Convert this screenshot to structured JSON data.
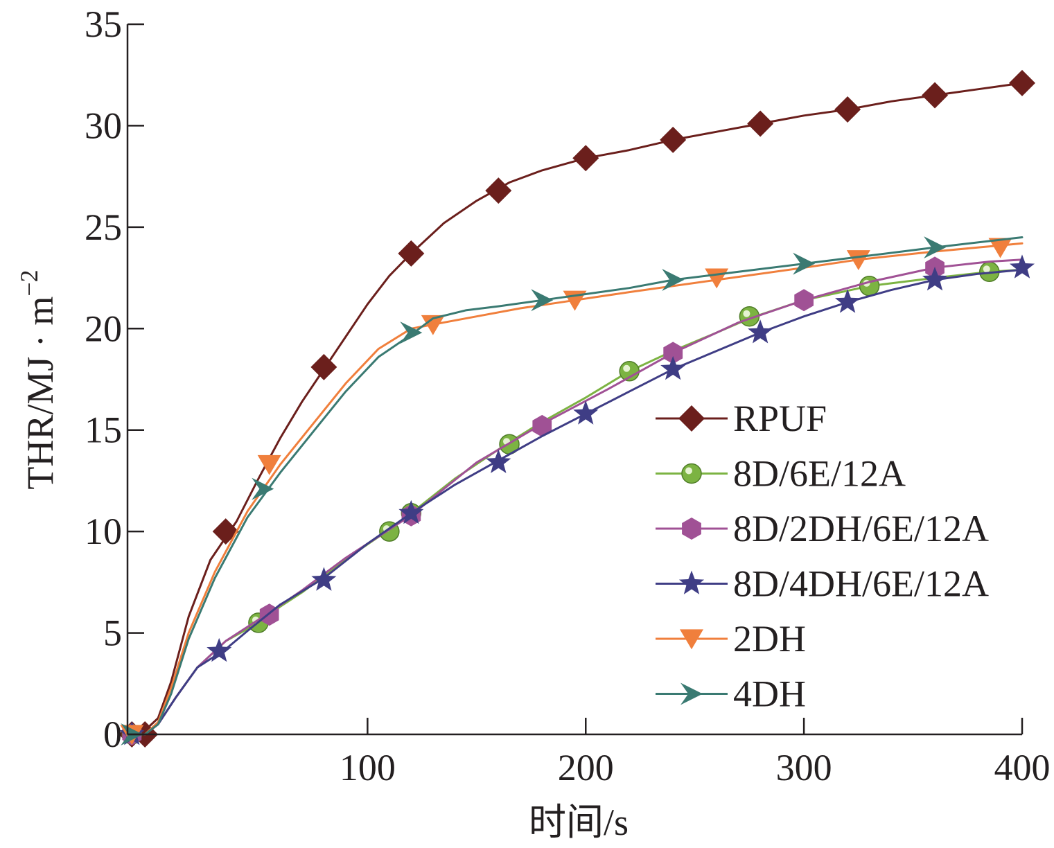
{
  "chart_data": {
    "type": "line",
    "title": "",
    "xlabel": "时间/s",
    "ylabel": "THR/MJ·m⁻²",
    "ylabel_main": "THR/MJ · m",
    "ylabel_sup": "−2",
    "xlim": [
      -10,
      400
    ],
    "ylim": [
      0,
      35
    ],
    "x_ticks": [
      100,
      200,
      300,
      400
    ],
    "y_ticks": [
      0,
      5,
      10,
      15,
      20,
      25,
      30,
      35
    ],
    "x_tick_labels": [
      "100",
      "200",
      "300",
      "400"
    ],
    "y_tick_labels": [
      "0",
      "5",
      "10",
      "15",
      "20",
      "25",
      "30",
      "35"
    ],
    "grid": false,
    "legend_position": "center-right",
    "series": [
      {
        "name": "RPUF",
        "color": "#6b1f1c",
        "marker": "diamond",
        "line": [
          [
            -10,
            0
          ],
          [
            -3,
            0.1
          ],
          [
            4,
            0.8
          ],
          [
            10,
            2.6
          ],
          [
            18,
            5.8
          ],
          [
            28,
            8.6
          ],
          [
            40,
            10.5
          ],
          [
            50,
            12.6
          ],
          [
            60,
            14.6
          ],
          [
            70,
            16.4
          ],
          [
            80,
            18.0
          ],
          [
            90,
            19.6
          ],
          [
            100,
            21.2
          ],
          [
            110,
            22.6
          ],
          [
            120,
            23.7
          ],
          [
            135,
            25.2
          ],
          [
            150,
            26.3
          ],
          [
            165,
            27.2
          ],
          [
            180,
            27.8
          ],
          [
            200,
            28.4
          ],
          [
            220,
            28.8
          ],
          [
            240,
            29.3
          ],
          [
            260,
            29.7
          ],
          [
            280,
            30.1
          ],
          [
            300,
            30.5
          ],
          [
            320,
            30.8
          ],
          [
            340,
            31.2
          ],
          [
            360,
            31.5
          ],
          [
            380,
            31.8
          ],
          [
            400,
            32.1
          ]
        ],
        "markers": [
          [
            -8,
            0
          ],
          [
            -2,
            0
          ],
          [
            35,
            10.0
          ],
          [
            80,
            18.1
          ],
          [
            120,
            23.7
          ],
          [
            160,
            26.8
          ],
          [
            200,
            28.4
          ],
          [
            240,
            29.3
          ],
          [
            280,
            30.1
          ],
          [
            320,
            30.8
          ],
          [
            360,
            31.5
          ],
          [
            400,
            32.1
          ]
        ]
      },
      {
        "name": "8D/6E/12A",
        "color": "#7cb342",
        "marker": "circle",
        "line": [
          [
            -10,
            0
          ],
          [
            -2,
            0
          ],
          [
            4,
            0.5
          ],
          [
            12,
            1.8
          ],
          [
            22,
            3.3
          ],
          [
            35,
            4.6
          ],
          [
            50,
            5.5
          ],
          [
            60,
            6.3
          ],
          [
            70,
            7.0
          ],
          [
            80,
            7.8
          ],
          [
            95,
            9.0
          ],
          [
            110,
            10.1
          ],
          [
            120,
            10.9
          ],
          [
            140,
            12.6
          ],
          [
            165,
            14.4
          ],
          [
            180,
            15.4
          ],
          [
            200,
            16.6
          ],
          [
            220,
            17.9
          ],
          [
            240,
            18.9
          ],
          [
            260,
            19.8
          ],
          [
            275,
            20.5
          ],
          [
            300,
            21.4
          ],
          [
            330,
            22.1
          ],
          [
            360,
            22.5
          ],
          [
            385,
            22.8
          ],
          [
            400,
            22.9
          ]
        ],
        "markers": [
          [
            -8,
            0
          ],
          [
            50,
            5.5
          ],
          [
            110,
            10.0
          ],
          [
            120,
            10.9
          ],
          [
            165,
            14.3
          ],
          [
            220,
            17.9
          ],
          [
            275,
            20.6
          ],
          [
            330,
            22.1
          ],
          [
            385,
            22.8
          ]
        ]
      },
      {
        "name": "8D/2DH/6E/12A",
        "color": "#a05195",
        "marker": "hexagon",
        "line": [
          [
            -10,
            0
          ],
          [
            -2,
            0
          ],
          [
            4,
            0.5
          ],
          [
            12,
            1.8
          ],
          [
            22,
            3.3
          ],
          [
            35,
            4.6
          ],
          [
            45,
            5.3
          ],
          [
            55,
            6.0
          ],
          [
            70,
            7.1
          ],
          [
            90,
            8.7
          ],
          [
            110,
            10.1
          ],
          [
            120,
            10.8
          ],
          [
            150,
            13.4
          ],
          [
            180,
            15.3
          ],
          [
            210,
            17.0
          ],
          [
            240,
            18.8
          ],
          [
            270,
            20.3
          ],
          [
            300,
            21.4
          ],
          [
            330,
            22.3
          ],
          [
            360,
            23.0
          ],
          [
            385,
            23.3
          ],
          [
            400,
            23.4
          ]
        ],
        "markers": [
          [
            -8,
            0
          ],
          [
            55,
            5.9
          ],
          [
            120,
            10.8
          ],
          [
            180,
            15.2
          ],
          [
            240,
            18.8
          ],
          [
            300,
            21.4
          ],
          [
            360,
            23.0
          ]
        ]
      },
      {
        "name": "8D/4DH/6E/12A",
        "color": "#3f3d85",
        "marker": "star",
        "line": [
          [
            -10,
            0
          ],
          [
            -2,
            0
          ],
          [
            4,
            0.5
          ],
          [
            12,
            1.8
          ],
          [
            22,
            3.3
          ],
          [
            35,
            4.2
          ],
          [
            45,
            5.1
          ],
          [
            60,
            6.4
          ],
          [
            80,
            7.7
          ],
          [
            100,
            9.4
          ],
          [
            120,
            10.9
          ],
          [
            140,
            12.3
          ],
          [
            160,
            13.5
          ],
          [
            180,
            14.7
          ],
          [
            200,
            15.8
          ],
          [
            220,
            16.9
          ],
          [
            240,
            18.0
          ],
          [
            260,
            18.9
          ],
          [
            280,
            19.8
          ],
          [
            300,
            20.6
          ],
          [
            320,
            21.3
          ],
          [
            340,
            21.9
          ],
          [
            360,
            22.4
          ],
          [
            380,
            22.7
          ],
          [
            400,
            22.9
          ]
        ],
        "markers": [
          [
            -8,
            0
          ],
          [
            32,
            4.1
          ],
          [
            80,
            7.6
          ],
          [
            120,
            10.9
          ],
          [
            160,
            13.4
          ],
          [
            200,
            15.8
          ],
          [
            240,
            18.0
          ],
          [
            280,
            19.8
          ],
          [
            320,
            21.3
          ],
          [
            360,
            22.4
          ],
          [
            400,
            23.0
          ]
        ]
      },
      {
        "name": "2DH",
        "color": "#f07f3c",
        "marker": "triangle-down",
        "line": [
          [
            -10,
            0
          ],
          [
            -2,
            0
          ],
          [
            4,
            0.6
          ],
          [
            10,
            2.3
          ],
          [
            18,
            5.0
          ],
          [
            30,
            8.0
          ],
          [
            45,
            11.0
          ],
          [
            60,
            13.3
          ],
          [
            75,
            15.3
          ],
          [
            90,
            17.3
          ],
          [
            105,
            19.0
          ],
          [
            120,
            20.0
          ],
          [
            130,
            20.2
          ],
          [
            150,
            20.6
          ],
          [
            170,
            21.0
          ],
          [
            195,
            21.4
          ],
          [
            220,
            21.8
          ],
          [
            260,
            22.4
          ],
          [
            300,
            23.0
          ],
          [
            325,
            23.4
          ],
          [
            360,
            23.8
          ],
          [
            390,
            24.1
          ],
          [
            400,
            24.2
          ]
        ],
        "markers": [
          [
            -8,
            0
          ],
          [
            55,
            13.3
          ],
          [
            130,
            20.2
          ],
          [
            195,
            21.4
          ],
          [
            260,
            22.5
          ],
          [
            325,
            23.4
          ],
          [
            390,
            24.0
          ]
        ]
      },
      {
        "name": "4DH",
        "color": "#3a7a72",
        "marker": "check",
        "line": [
          [
            -10,
            0
          ],
          [
            -2,
            0
          ],
          [
            4,
            0.5
          ],
          [
            10,
            2.0
          ],
          [
            18,
            4.7
          ],
          [
            30,
            7.7
          ],
          [
            45,
            10.7
          ],
          [
            60,
            12.9
          ],
          [
            75,
            14.9
          ],
          [
            90,
            16.9
          ],
          [
            105,
            18.6
          ],
          [
            120,
            19.7
          ],
          [
            130,
            20.5
          ],
          [
            145,
            20.9
          ],
          [
            160,
            21.1
          ],
          [
            180,
            21.4
          ],
          [
            200,
            21.7
          ],
          [
            220,
            22.0
          ],
          [
            240,
            22.4
          ],
          [
            270,
            22.8
          ],
          [
            300,
            23.2
          ],
          [
            330,
            23.6
          ],
          [
            360,
            24.0
          ],
          [
            400,
            24.5
          ]
        ],
        "markers": [
          [
            -8,
            0
          ],
          [
            52,
            12.1
          ],
          [
            120,
            19.8
          ],
          [
            180,
            21.4
          ],
          [
            240,
            22.4
          ],
          [
            300,
            23.2
          ],
          [
            360,
            24.0
          ]
        ]
      }
    ]
  }
}
